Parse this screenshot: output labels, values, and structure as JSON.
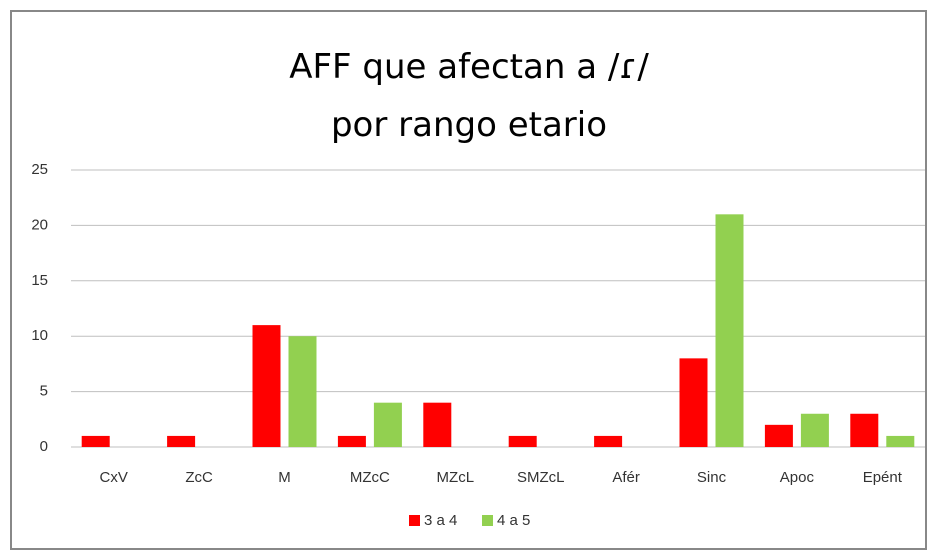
{
  "chart_data": {
    "type": "bar",
    "title": "AFF que afectan a /ɾ/\npor rango etario",
    "categories": [
      "CxV",
      "ZcC",
      "M",
      "MZcC",
      "MZcL",
      "SMZcL",
      "Afér",
      "Sinc",
      "Apoc",
      "Epént"
    ],
    "series": [
      {
        "name": "3 a 4",
        "color": "#ff0000",
        "values": [
          1,
          1,
          11,
          1,
          4,
          1,
          1,
          8,
          2,
          3
        ]
      },
      {
        "name": "4 a 5",
        "color": "#92d050",
        "values": [
          0,
          0,
          10,
          4,
          0,
          0,
          0,
          21,
          3,
          1
        ]
      }
    ],
    "ylim": [
      0,
      25
    ],
    "yticks": [
      0,
      5,
      10,
      15,
      20,
      25
    ],
    "grid": true,
    "legend": "bottom"
  }
}
